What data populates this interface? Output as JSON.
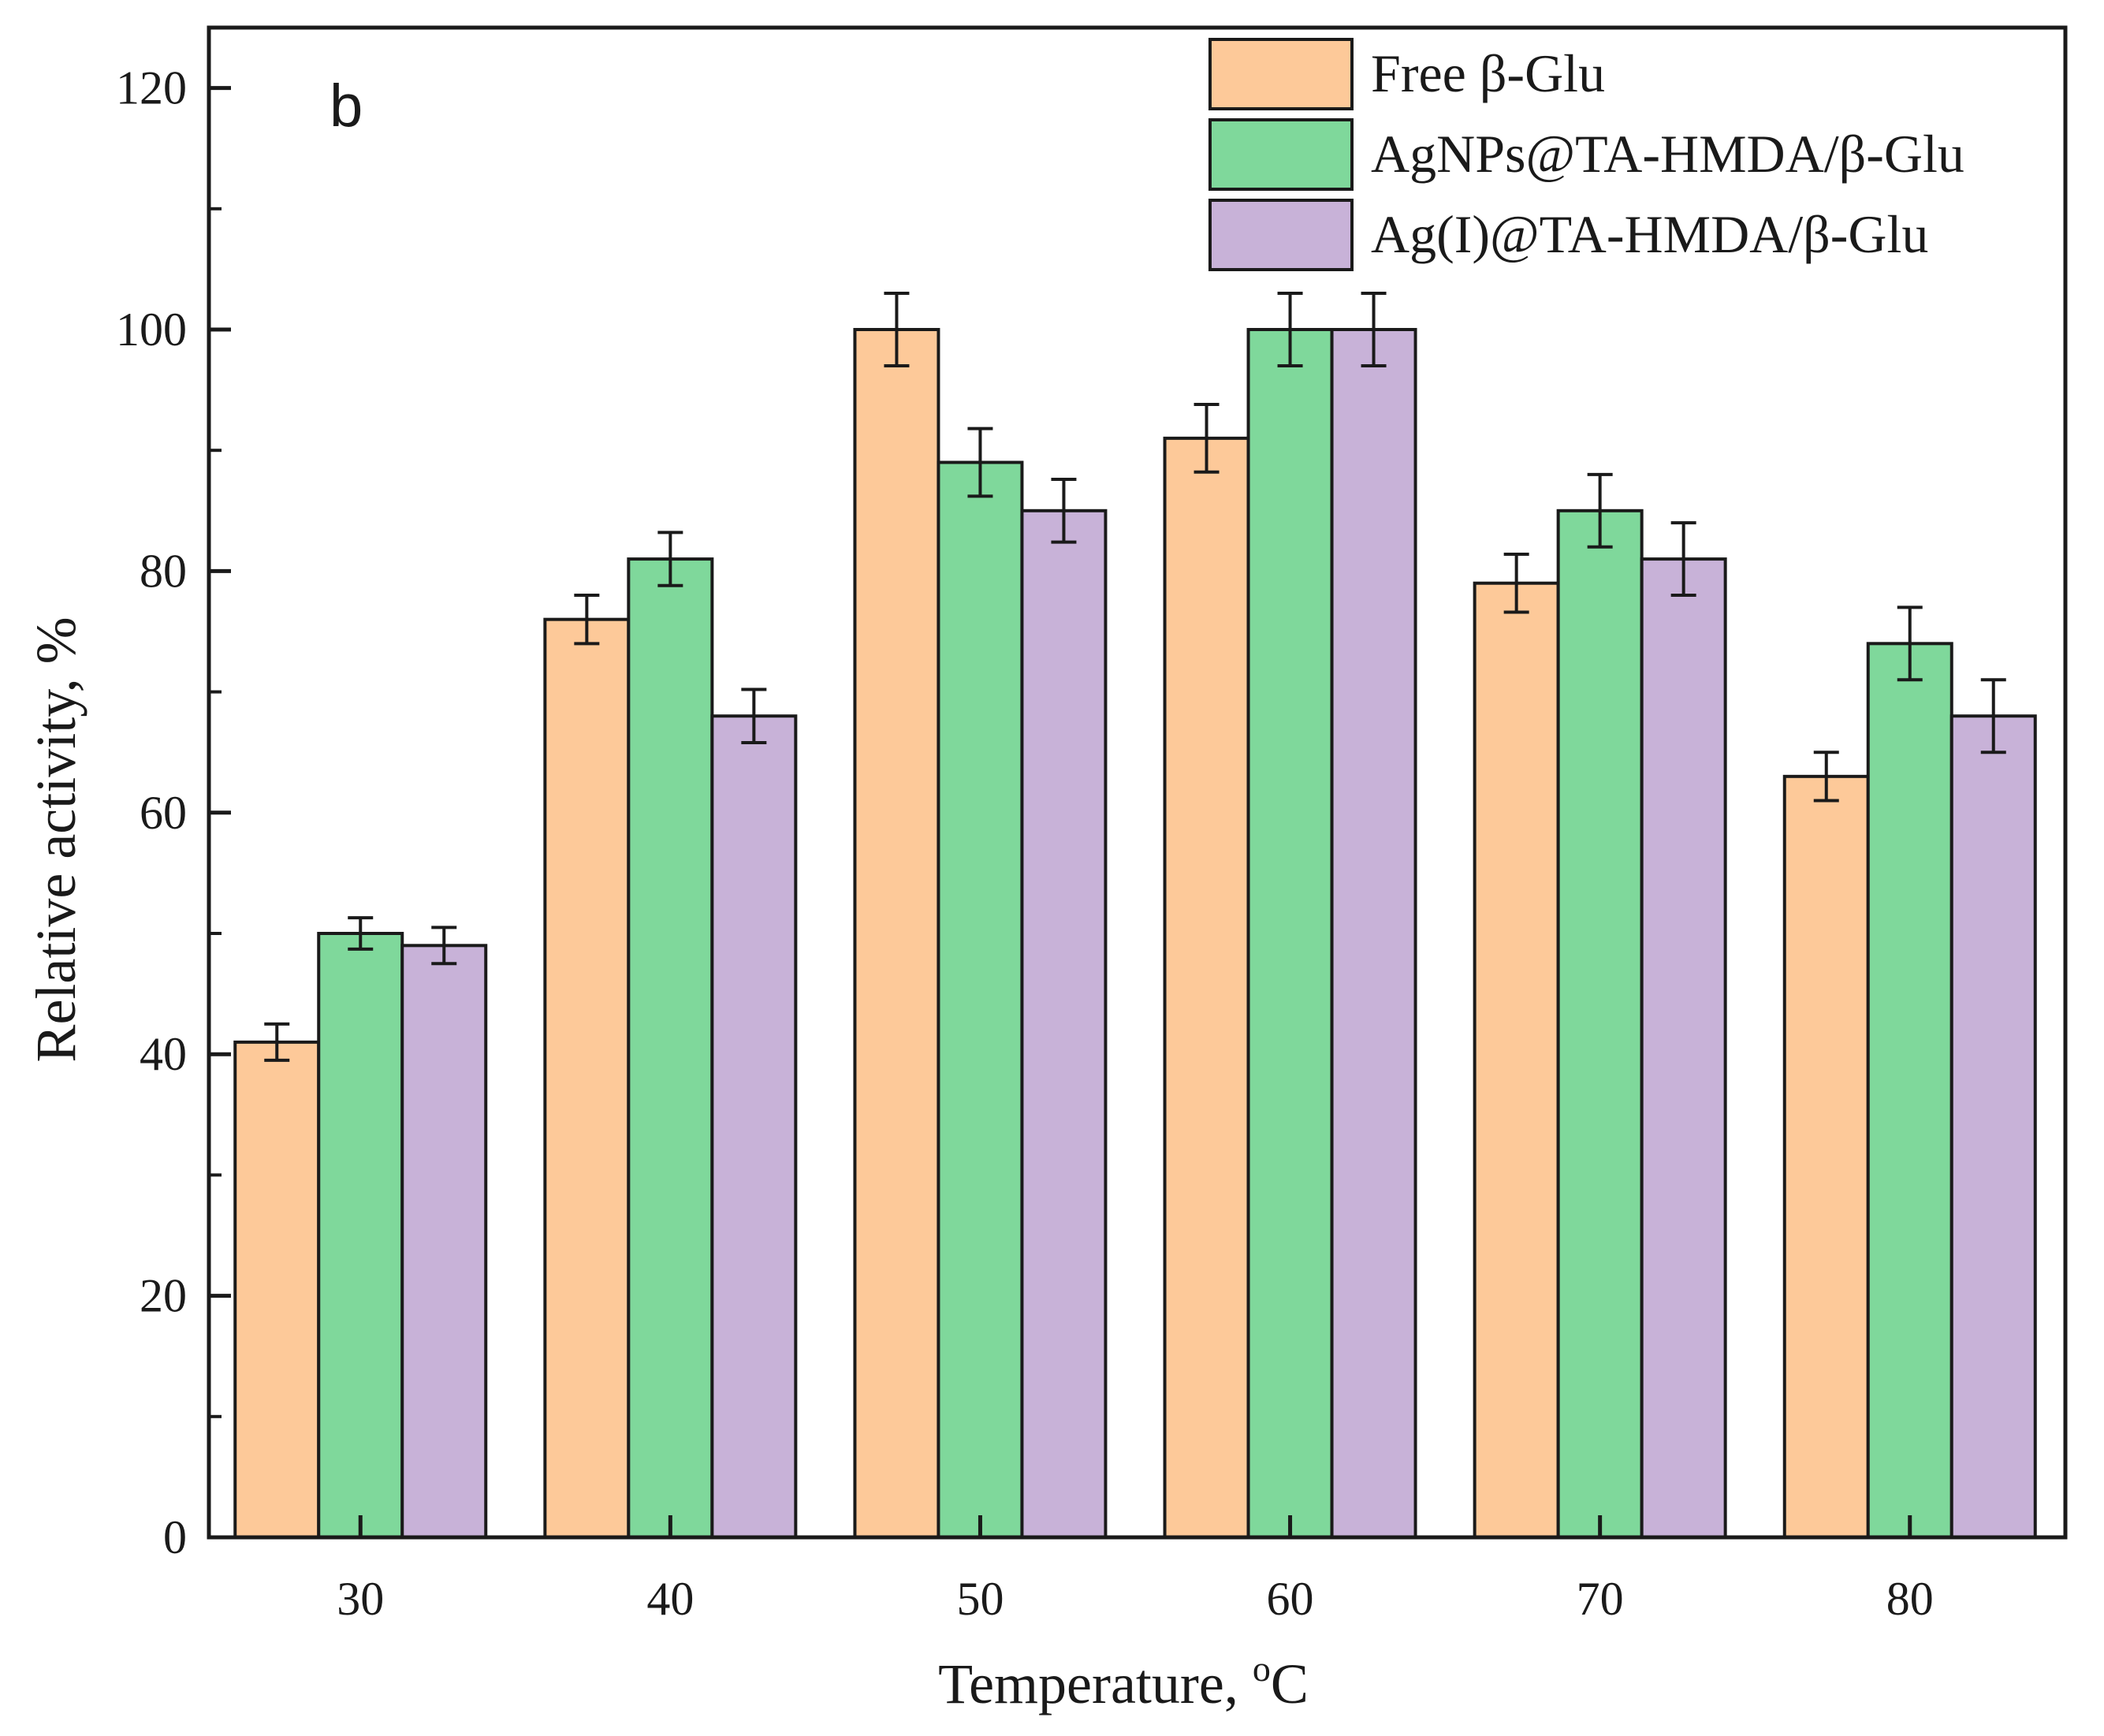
{
  "chart_data": {
    "type": "bar",
    "panel_label": "b",
    "xlabel": "Temperature, ",
    "xlabel_sup": "o",
    "xlabel_unit": "C",
    "ylabel": "Relative activity, %",
    "ylim": [
      0,
      125
    ],
    "yticks": [
      0,
      20,
      40,
      60,
      80,
      100,
      120
    ],
    "categories": [
      "30",
      "40",
      "50",
      "60",
      "70",
      "80"
    ],
    "legend_position": "top-right",
    "series": [
      {
        "name": "Free β-Glu",
        "color": "#FDC999",
        "values": [
          41,
          76,
          100,
          91,
          79,
          63
        ],
        "errors": [
          1.5,
          2,
          3,
          2.8,
          2.4,
          2
        ]
      },
      {
        "name": "AgNPs@TA-HMDA/β-Glu",
        "color": "#7FD89B",
        "values": [
          50,
          81,
          89,
          100,
          85,
          74
        ],
        "errors": [
          1.3,
          2.2,
          2.8,
          3,
          3,
          3
        ]
      },
      {
        "name": "Ag(I)@TA-HMDA/β-Glu",
        "color": "#C8B2D8",
        "values": [
          49,
          68,
          85,
          100,
          81,
          68
        ],
        "errors": [
          1.5,
          2.2,
          2.6,
          3,
          3,
          3
        ]
      }
    ]
  }
}
